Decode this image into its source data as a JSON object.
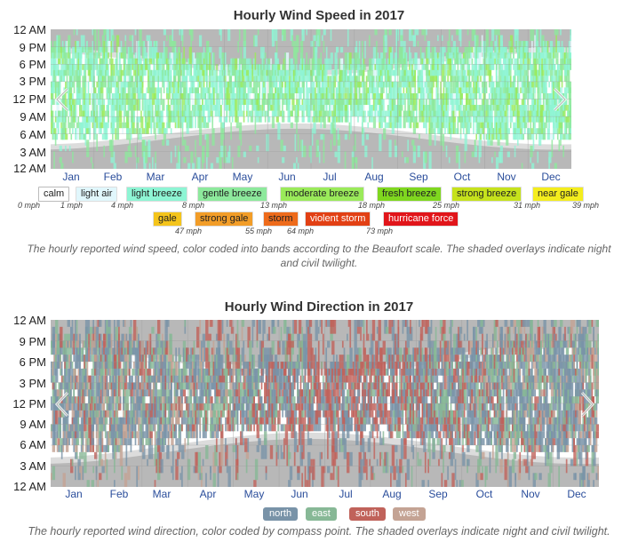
{
  "chart_data": [
    {
      "type": "heatmap",
      "title": "Hourly Wind Speed in 2017",
      "y_tick_labels": [
        "12 AM",
        "9 PM",
        "6 PM",
        "3 PM",
        "12 PM",
        "9 AM",
        "6 AM",
        "3 AM",
        "12 AM"
      ],
      "x_tick_labels": [
        "Jan",
        "Feb",
        "Mar",
        "Apr",
        "May",
        "Jun",
        "Jul",
        "Aug",
        "Sep",
        "Oct",
        "Nov",
        "Dec"
      ],
      "legend": [
        {
          "name": "calm",
          "color": "#ffffff"
        },
        {
          "name": "light air",
          "color": "#e1f7fc"
        },
        {
          "name": "light breeze",
          "color": "#8ef5d4"
        },
        {
          "name": "gentle breeze",
          "color": "#8de99c"
        },
        {
          "name": "moderate breeze",
          "color": "#9aea5a"
        },
        {
          "name": "fresh breeze",
          "color": "#7fd71f"
        },
        {
          "name": "strong breeze",
          "color": "#c6e21c"
        },
        {
          "name": "near gale",
          "color": "#f4ed1d"
        },
        {
          "name": "gale",
          "color": "#f4c41b"
        },
        {
          "name": "strong gale",
          "color": "#f29d28"
        },
        {
          "name": "storm",
          "color": "#ee6b1b"
        },
        {
          "name": "violent storm",
          "color": "#e24014"
        },
        {
          "name": "hurricane force",
          "color": "#e1151a"
        }
      ],
      "thresholds": [
        "0 mph",
        "1 mph",
        "4 mph",
        "8 mph",
        "13 mph",
        "18 mph",
        "25 mph",
        "31 mph",
        "39 mph",
        "47 mph",
        "55 mph",
        "64 mph",
        "73 mph"
      ],
      "caption": "The hourly reported wind speed, color coded into bands according to the Beaufort scale. The shaded overlays indicate night and civil twilight."
    },
    {
      "type": "heatmap",
      "title": "Hourly Wind Direction in 2017",
      "y_tick_labels": [
        "12 AM",
        "9 PM",
        "6 PM",
        "3 PM",
        "12 PM",
        "9 AM",
        "6 AM",
        "3 AM",
        "12 AM"
      ],
      "x_tick_labels": [
        "Jan",
        "Feb",
        "Mar",
        "Apr",
        "May",
        "Jun",
        "Jul",
        "Aug",
        "Sep",
        "Oct",
        "Nov",
        "Dec"
      ],
      "legend": [
        {
          "name": "north",
          "color": "#7993a8"
        },
        {
          "name": "east",
          "color": "#87b896"
        },
        {
          "name": "south",
          "color": "#c0625a"
        },
        {
          "name": "west",
          "color": "#c4a394"
        }
      ],
      "caption": "The hourly reported wind direction, color coded by compass point. The shaded overlays indicate night and civil twilight."
    }
  ],
  "colors": {
    "night": "#b8b8b8",
    "twilight": "#dcdcdc",
    "grid": "#a0a0a0",
    "month_label": "#2a4d9b"
  }
}
